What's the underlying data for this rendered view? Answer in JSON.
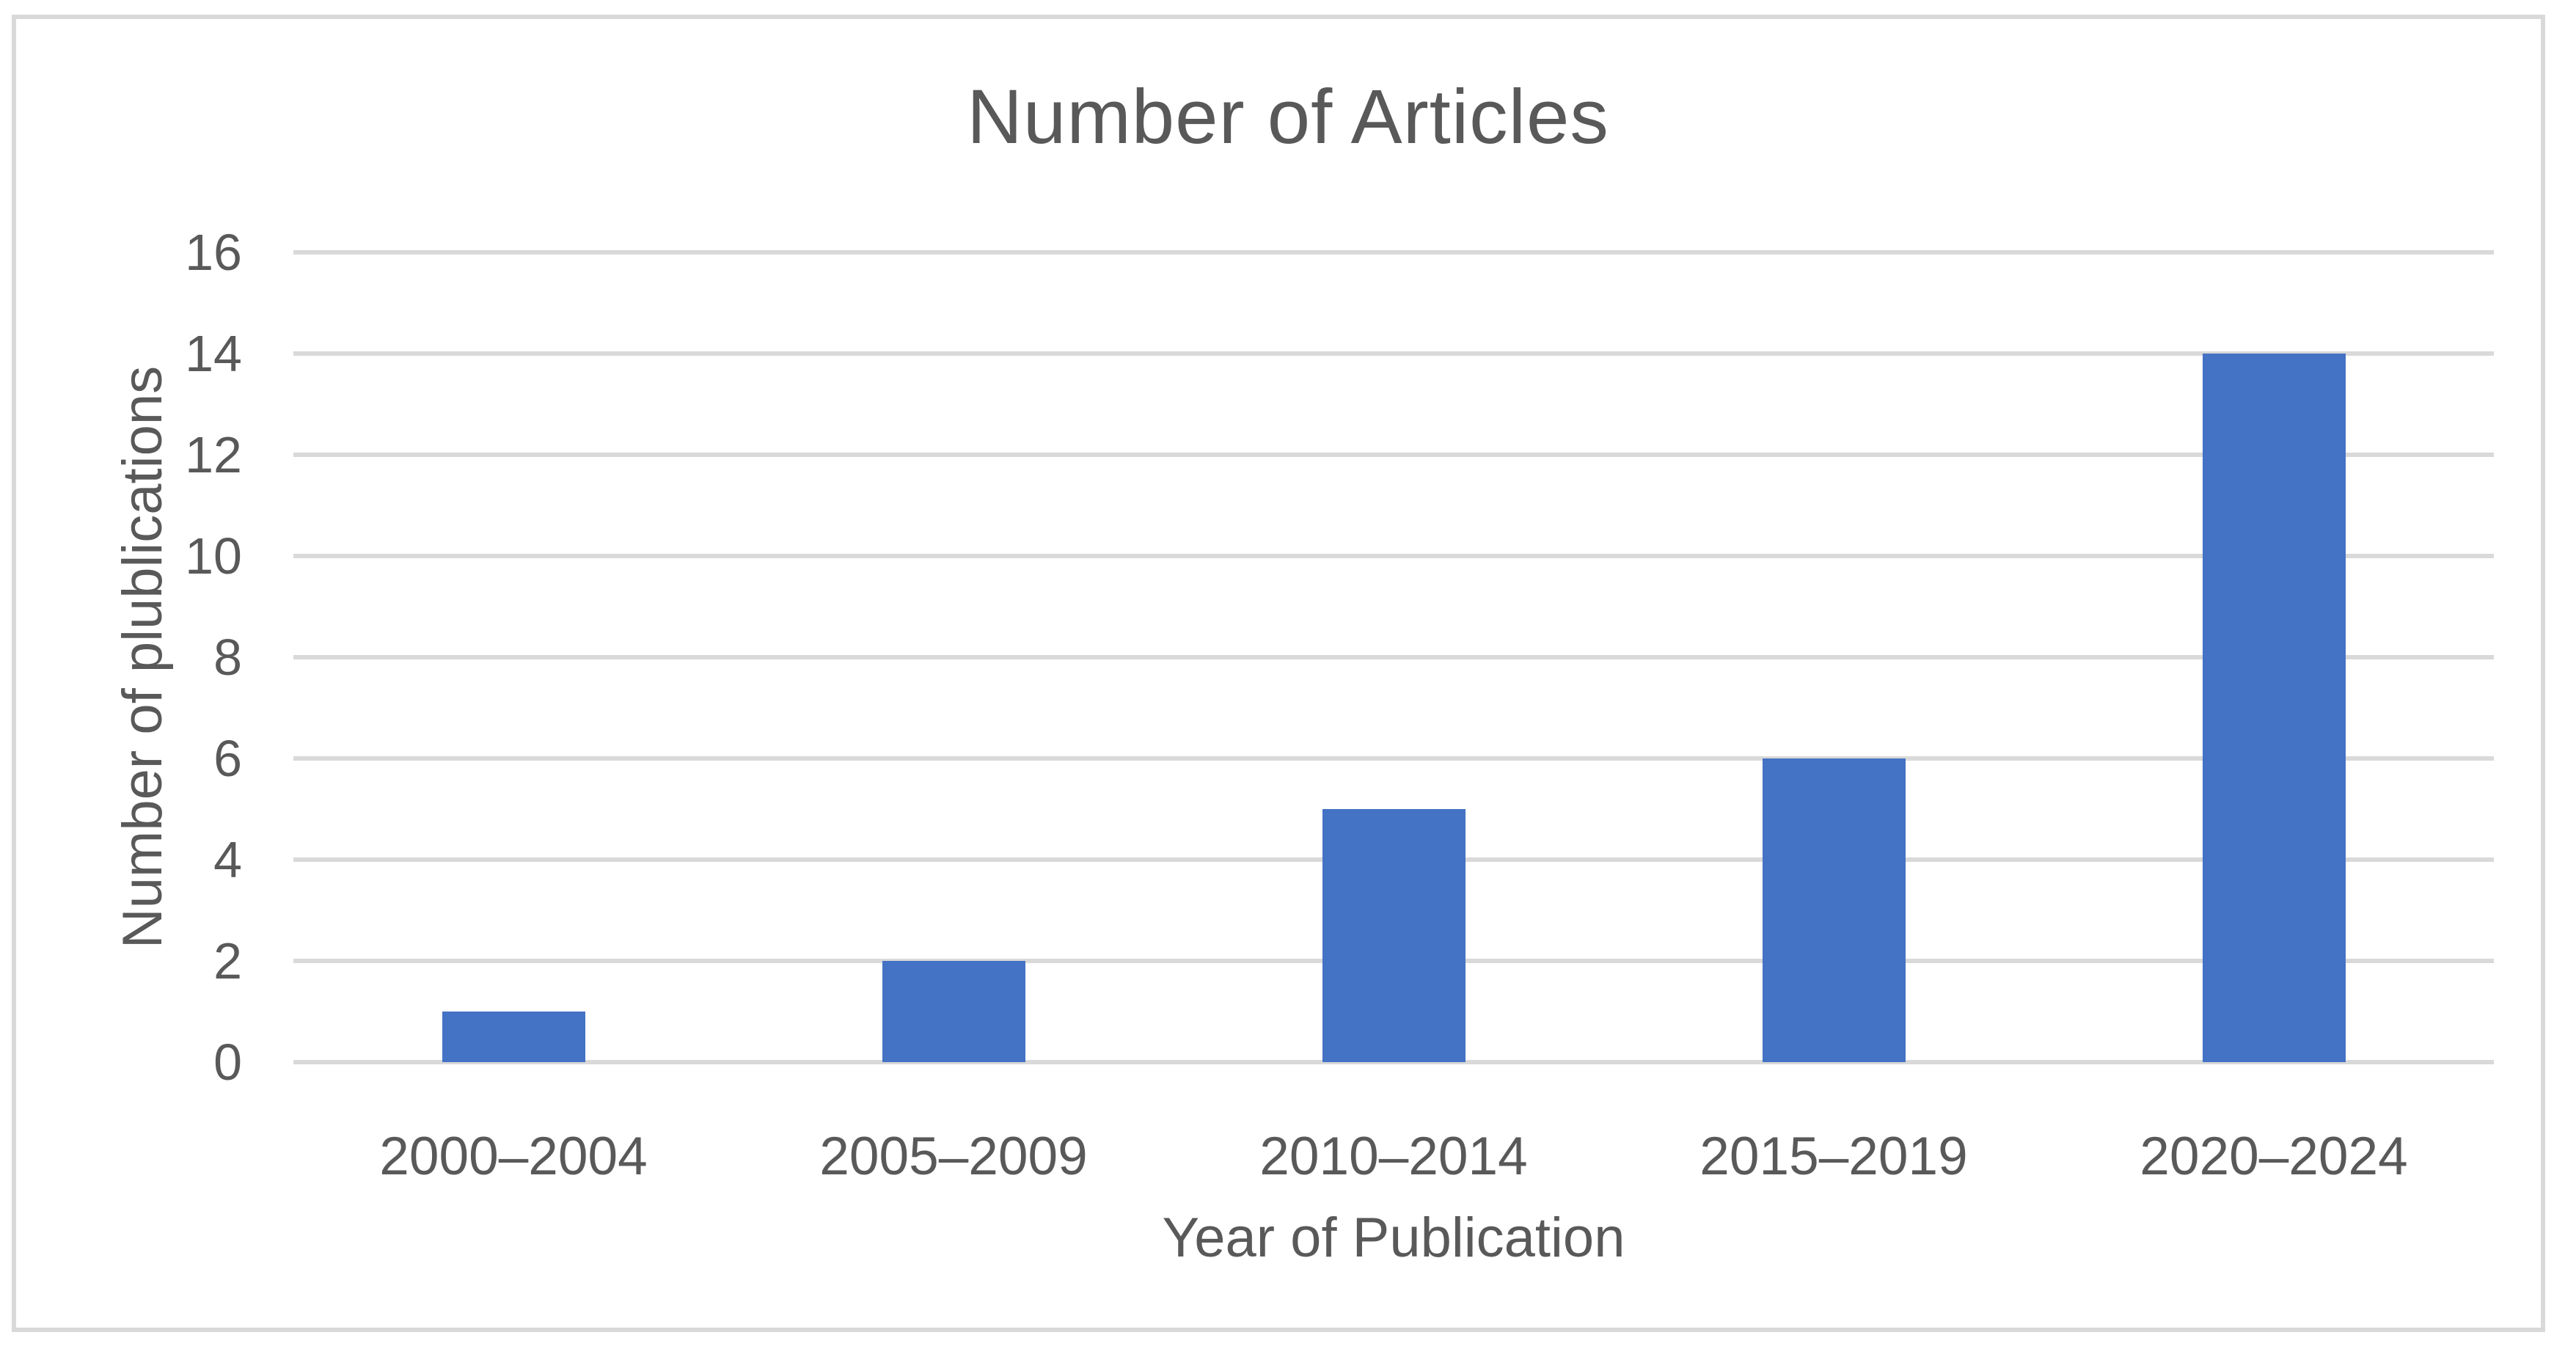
{
  "chart_data": {
    "type": "bar",
    "title": "Number of Articles",
    "xlabel": "Year of Publication",
    "ylabel": "Number of plublications",
    "categories": [
      "2000–2004",
      "2005–2009",
      "2010–2014",
      "2015–2019",
      "2020–2024"
    ],
    "values": [
      1,
      2,
      5,
      6,
      14
    ],
    "series": [
      {
        "name": "Number of Articles",
        "values": [
          1,
          2,
          5,
          6,
          14
        ]
      }
    ],
    "ylim": [
      0,
      16
    ],
    "yticks": [
      0,
      2,
      4,
      6,
      8,
      10,
      12,
      14,
      16
    ],
    "grid": true,
    "legend": false,
    "data_labels": false,
    "colors": {
      "bar": "#4472C4",
      "gridline": "#D9D9D9",
      "frame_border": "#D9D9D9",
      "text": "#595959",
      "background": "#FFFFFF"
    }
  }
}
